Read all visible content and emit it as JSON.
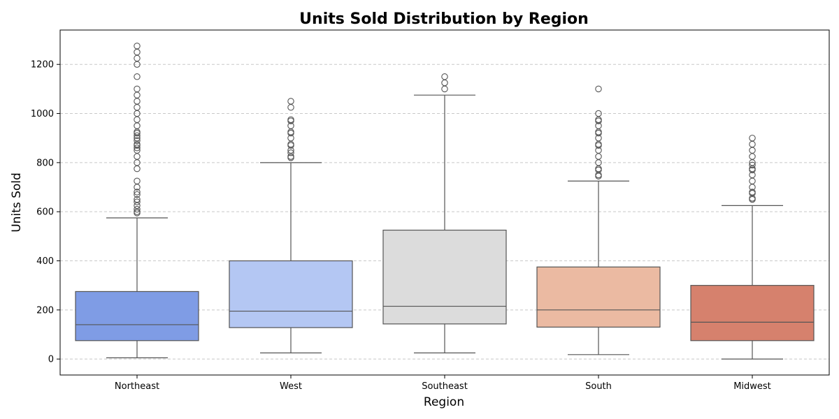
{
  "chart_data": {
    "type": "boxplot",
    "title": "Units Sold Distribution by Region",
    "xlabel": "Region",
    "ylabel": "Units Sold",
    "ylim": [
      -65,
      1340
    ],
    "yticks": [
      0,
      200,
      400,
      600,
      800,
      1000,
      1200
    ],
    "grid": "y-dashed",
    "categories": [
      "Northeast",
      "West",
      "Southeast",
      "South",
      "Midwest"
    ],
    "colors": [
      "#7f9ce5",
      "#b4c7f3",
      "#dcdcdc",
      "#ebbaa2",
      "#d6816d"
    ],
    "boxes": [
      {
        "category": "Northeast",
        "whisker_low": 5,
        "q1": 75,
        "median": 140,
        "q3": 275,
        "whisker_high": 575,
        "outliers": [
          595,
          600,
          610,
          625,
          640,
          650,
          670,
          680,
          700,
          725,
          775,
          800,
          825,
          850,
          860,
          870,
          875,
          890,
          900,
          910,
          920,
          925,
          950,
          975,
          1000,
          1025,
          1050,
          1075,
          1100,
          1150,
          1200,
          1225,
          1250,
          1275
        ]
      },
      {
        "category": "West",
        "whisker_low": 25,
        "q1": 128,
        "median": 195,
        "q3": 400,
        "whisker_high": 800,
        "outliers": [
          820,
          825,
          840,
          850,
          870,
          875,
          900,
          920,
          925,
          950,
          970,
          975,
          1025,
          1050
        ]
      },
      {
        "category": "Southeast",
        "whisker_low": 25,
        "q1": 143,
        "median": 215,
        "q3": 525,
        "whisker_high": 1075,
        "outliers": [
          1100,
          1125,
          1150
        ]
      },
      {
        "category": "South",
        "whisker_low": 18,
        "q1": 130,
        "median": 200,
        "q3": 375,
        "whisker_high": 725,
        "outliers": [
          745,
          750,
          770,
          775,
          800,
          825,
          850,
          870,
          875,
          900,
          920,
          925,
          950,
          970,
          975,
          1000,
          1100
        ]
      },
      {
        "category": "Midwest",
        "whisker_low": 0,
        "q1": 75,
        "median": 150,
        "q3": 300,
        "whisker_high": 625,
        "outliers": [
          650,
          655,
          675,
          680,
          700,
          725,
          750,
          770,
          775,
          790,
          800,
          825,
          850,
          875,
          900
        ]
      }
    ]
  }
}
